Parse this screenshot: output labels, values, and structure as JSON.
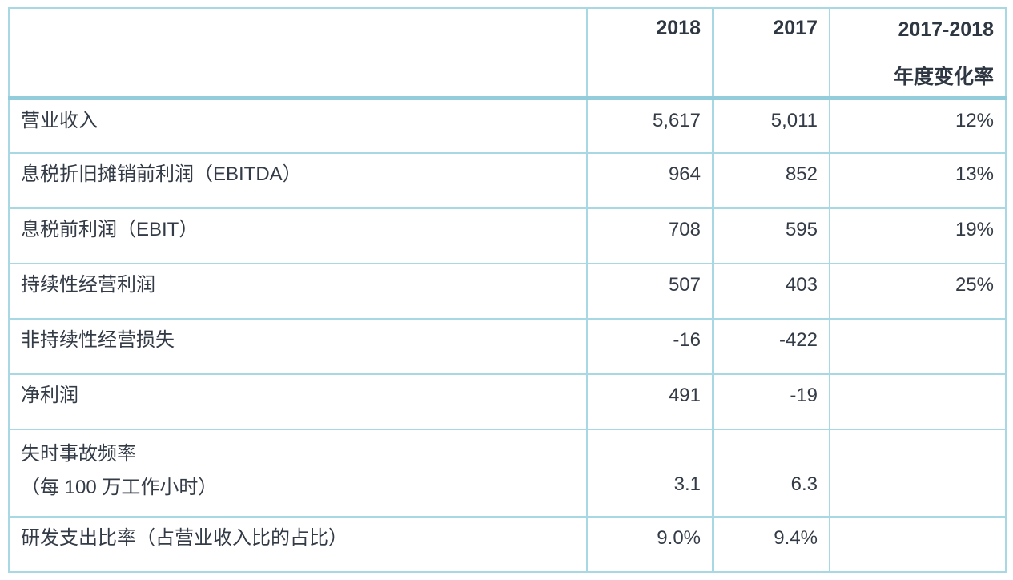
{
  "colors": {
    "border_light": "#a7d8e3",
    "border_header_thick": "#93cddc",
    "text": "#333b46",
    "background": "#ffffff"
  },
  "table": {
    "header": {
      "metric": "",
      "col_2018": "2018",
      "col_2017": "2017",
      "change_line1": "2017-2018",
      "change_line2": "年度变化率"
    },
    "rows": [
      {
        "label": "营业收入",
        "y2018": "5,617",
        "y2017": "5,011",
        "change": "12%"
      },
      {
        "label": "息税折旧摊销前利润（EBITDA）",
        "y2018": "964",
        "y2017": "852",
        "change": "13%"
      },
      {
        "label": "息税前利润（EBIT）",
        "y2018": "708",
        "y2017": "595",
        "change": "19%"
      },
      {
        "label": "持续性经营利润",
        "y2018": "507",
        "y2017": "403",
        "change": "25%"
      },
      {
        "label": "非持续性经营损失",
        "y2018": "-16",
        "y2017": "-422",
        "change": ""
      },
      {
        "label": "净利润",
        "y2018": "491",
        "y2017": "-19",
        "change": ""
      },
      {
        "label_line1": "失时事故频率",
        "label_line2": "（每 100 万工作小时）",
        "y2018": "3.1",
        "y2017": "6.3",
        "change": ""
      },
      {
        "label": "研发支出比率（占营业收入比的占比）",
        "y2018": "9.0%",
        "y2017": "9.4%",
        "change": ""
      }
    ]
  },
  "chart_data": {
    "type": "table",
    "title": "",
    "columns": [
      "",
      "2018",
      "2017",
      "2017-2018 年度变化率"
    ],
    "rows": [
      [
        "营业收入",
        "5,617",
        "5,011",
        "12%"
      ],
      [
        "息税折旧摊销前利润（EBITDA）",
        "964",
        "852",
        "13%"
      ],
      [
        "息税前利润（EBIT）",
        "708",
        "595",
        "19%"
      ],
      [
        "持续性经营利润",
        "507",
        "403",
        "25%"
      ],
      [
        "非持续性经营损失",
        "-16",
        "-422",
        ""
      ],
      [
        "净利润",
        "491",
        "-19",
        ""
      ],
      [
        "失时事故频率（每 100 万工作小时）",
        "3.1",
        "6.3",
        ""
      ],
      [
        "研发支出比率（占营业收入比的占比）",
        "9.0%",
        "9.4%",
        ""
      ]
    ],
    "layout_hints": {
      "grid": true,
      "value_alignment": "right",
      "header_bold": true,
      "accent_border_color": "#a7d8e3"
    }
  }
}
